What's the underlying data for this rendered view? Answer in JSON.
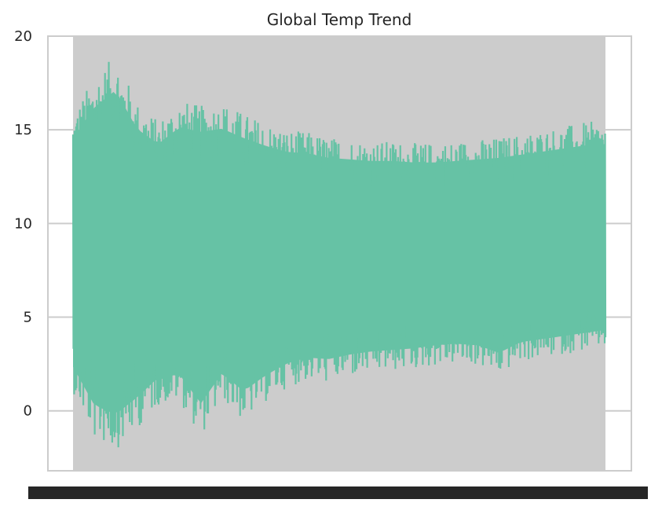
{
  "chart_data": {
    "type": "line",
    "title": "Global Temp Trend",
    "xlabel": "",
    "ylabel": "",
    "ylim": [
      -3.2,
      20
    ],
    "yticks": [
      0,
      5,
      10,
      15,
      20
    ],
    "ytick_labels": [
      "0",
      "5",
      "10",
      "15",
      "20"
    ],
    "grid": true,
    "legend": "none",
    "series": [
      {
        "color": "#66c2a5",
        "n_points": 3192,
        "y_min": -2.1,
        "y_max": 19.0,
        "upper_envelope": [
          15.9,
          17.9,
          19.0,
          16.5,
          15.5,
          16.6,
          16.3,
          16.5,
          15.9,
          15.4,
          15.0,
          14.9,
          14.6,
          14.5,
          14.4,
          14.4,
          14.3,
          14.3,
          14.4,
          14.5,
          14.6,
          14.8,
          15.0,
          15.2,
          15.4,
          15.5
        ],
        "lower_envelope": [
          1.0,
          -1.5,
          -2.1,
          -1.0,
          0.3,
          0.5,
          -1.4,
          0.6,
          -0.6,
          0.4,
          1.2,
          1.6,
          1.5,
          1.8,
          2.0,
          2.1,
          2.2,
          2.4,
          2.5,
          2.4,
          1.9,
          2.6,
          2.8,
          3.0,
          3.2,
          3.4
        ],
        "mean_level": 8.5
      }
    ]
  }
}
